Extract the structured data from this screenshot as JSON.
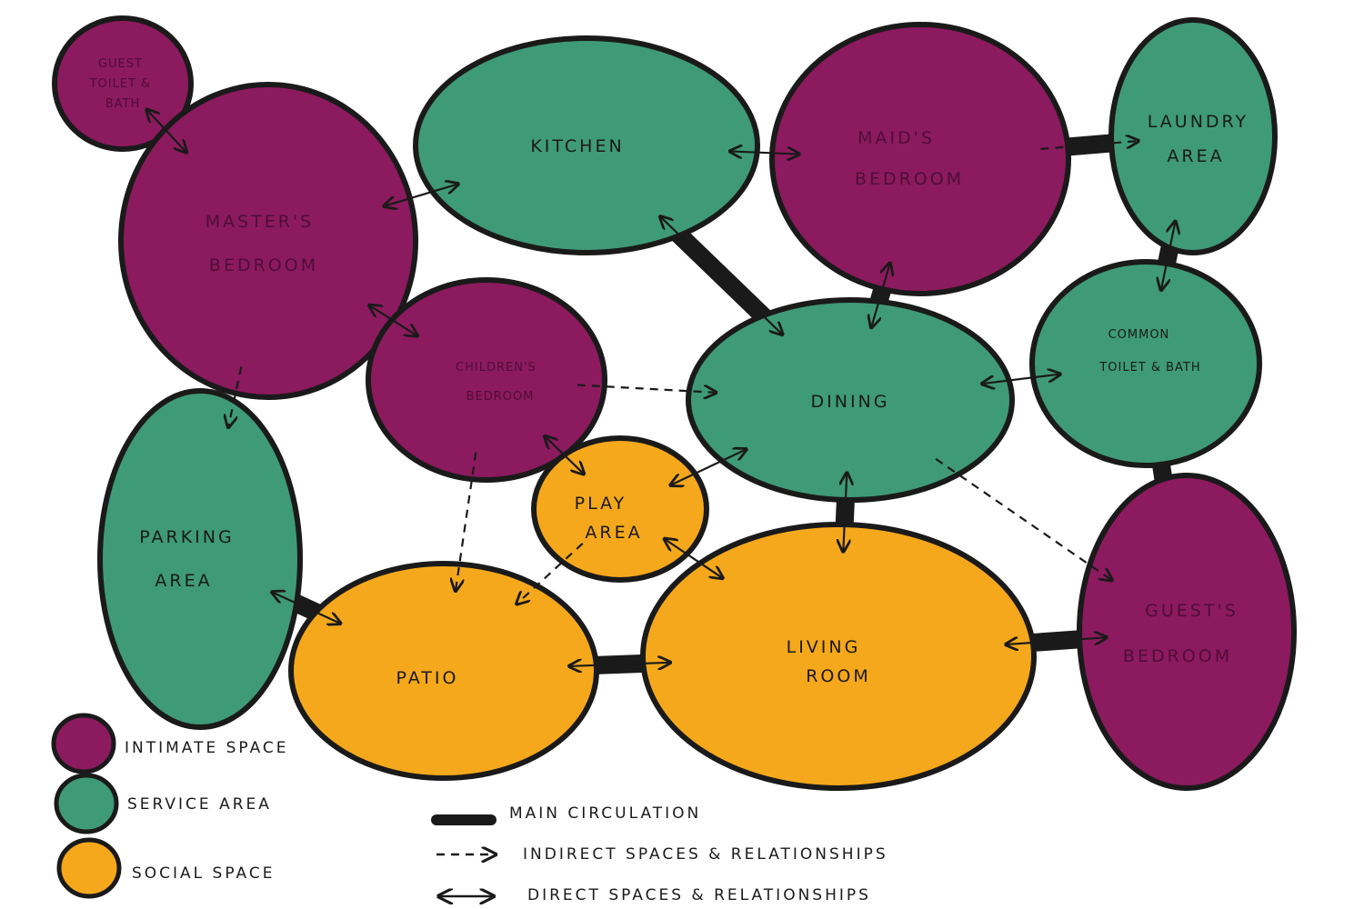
{
  "colors": {
    "intimate": "#8c1a5e",
    "service": "#3f9a78",
    "social": "#f5a81c",
    "outline": "#1a1a1a"
  },
  "nodes": {
    "guest_toilet": {
      "label_lines": [
        "GUEST",
        "TOILET &",
        "BATH"
      ],
      "category": "intimate"
    },
    "masters_bedroom": {
      "label_lines": [
        "MASTER'S",
        "BEDROOM"
      ],
      "category": "intimate"
    },
    "kitchen": {
      "label_lines": [
        "KITCHEN"
      ],
      "category": "service"
    },
    "maids_bedroom": {
      "label_lines": [
        "MAID'S",
        "BEDROOM"
      ],
      "category": "intimate"
    },
    "laundry_area": {
      "label_lines": [
        "LAUNDRY",
        "AREA"
      ],
      "category": "service"
    },
    "childrens_bedroom": {
      "label_lines": [
        "CHILDREN'S",
        "BEDROOM"
      ],
      "category": "intimate"
    },
    "dining": {
      "label_lines": [
        "DINING"
      ],
      "category": "service"
    },
    "common_toilet_bath": {
      "label_lines": [
        "COMMON",
        "TOILET & BATH"
      ],
      "category": "service"
    },
    "parking_area": {
      "label_lines": [
        "PARKING",
        "AREA"
      ],
      "category": "service"
    },
    "play_area": {
      "label_lines": [
        "PLAY",
        "AREA"
      ],
      "category": "social"
    },
    "patio": {
      "label_lines": [
        "PATIO"
      ],
      "category": "social"
    },
    "living_room": {
      "label_lines": [
        "LIVING",
        "ROOM"
      ],
      "category": "social"
    },
    "guests_bedroom": {
      "label_lines": [
        "GUEST'S",
        "BEDROOM"
      ],
      "category": "intimate"
    }
  },
  "legend": {
    "intimate_space": "INTIMATE SPACE",
    "service_area": "SERVICE AREA",
    "social_space": "SOCIAL SPACE",
    "main_circulation": "MAIN CIRCULATION",
    "indirect": "INDIRECT SPACES & RELATIONSHIPS",
    "direct": "DIRECT SPACES & RELATIONSHIPS"
  },
  "connections": {
    "main_circulation": [
      [
        "masters_bedroom",
        "childrens_bedroom"
      ],
      [
        "kitchen",
        "dining"
      ],
      [
        "maids_bedroom",
        "laundry_area"
      ],
      [
        "maids_bedroom",
        "dining"
      ],
      [
        "laundry_area",
        "common_toilet_bath"
      ],
      [
        "common_toilet_bath",
        "guests_bedroom"
      ],
      [
        "dining",
        "living_room"
      ],
      [
        "parking_area",
        "patio"
      ],
      [
        "patio",
        "living_room"
      ],
      [
        "living_room",
        "guests_bedroom"
      ]
    ],
    "direct": [
      [
        "guest_toilet",
        "masters_bedroom"
      ],
      [
        "masters_bedroom",
        "kitchen"
      ],
      [
        "kitchen",
        "maids_bedroom"
      ],
      [
        "kitchen",
        "dining"
      ],
      [
        "maids_bedroom",
        "dining"
      ],
      [
        "laundry_area",
        "common_toilet_bath"
      ],
      [
        "dining",
        "common_toilet_bath"
      ],
      [
        "masters_bedroom",
        "childrens_bedroom"
      ],
      [
        "childrens_bedroom",
        "play_area"
      ],
      [
        "dining",
        "play_area"
      ],
      [
        "dining",
        "living_room"
      ],
      [
        "parking_area",
        "patio"
      ],
      [
        "play_area",
        "living_room"
      ],
      [
        "patio",
        "living_room"
      ],
      [
        "living_room",
        "guests_bedroom"
      ]
    ],
    "indirect": [
      [
        "maids_bedroom",
        "laundry_area"
      ],
      [
        "masters_bedroom",
        "parking_area"
      ],
      [
        "childrens_bedroom",
        "dining"
      ],
      [
        "childrens_bedroom",
        "patio"
      ],
      [
        "play_area",
        "patio"
      ],
      [
        "dining",
        "guests_bedroom"
      ]
    ]
  }
}
